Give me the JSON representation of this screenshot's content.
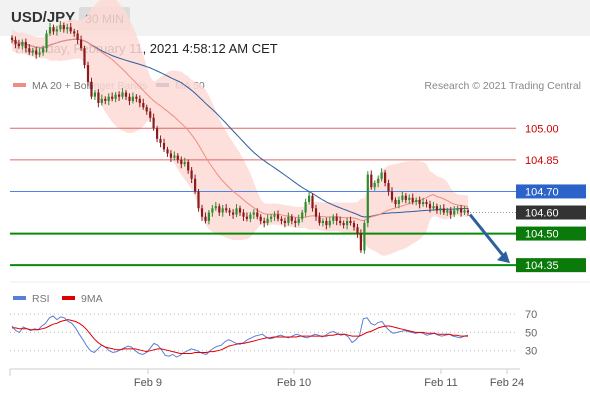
{
  "header": {
    "symbol": "USD/JPY",
    "timeframe": "30 MIN",
    "datetime": "Thursday, February 11, 2021 4:58:12 AM CET"
  },
  "legend": {
    "items": [
      {
        "label": "MA 20 + Bollinger Bands",
        "color": "#f28b82"
      },
      {
        "label": "MA 50",
        "color": "#2c5f9e"
      }
    ],
    "copyright": "Research © 2021 Trading Central"
  },
  "rsi_legend": {
    "items": [
      {
        "label": "RSI",
        "color": "#5b7fd6"
      },
      {
        "label": "9MA",
        "color": "#e00000"
      }
    ]
  },
  "colors": {
    "bullish_candle": "#2e8b2e",
    "bearish_candle": "#8b1a1a",
    "bollinger_fill": "#fdd9d6",
    "ma20": "#f28b82",
    "ma50": "#2c5f9e",
    "resistance": "#e06666",
    "pivot": "#4a86e8",
    "support": "#0a8a0a",
    "current_price_bg": "#333333",
    "arrow": "#2c5f9e"
  },
  "chart_data": [
    {
      "type": "candlestick",
      "title": "USD/JPY 30 MIN",
      "x_tick_labels": [
        "Feb 9",
        "Feb 10",
        "Feb 11",
        "Feb 24"
      ],
      "ylim": [
        104.27,
        105.12
      ],
      "levels": [
        {
          "label": "105.00",
          "value": 105.0,
          "kind": "resistance"
        },
        {
          "label": "104.85",
          "value": 104.85,
          "kind": "resistance"
        },
        {
          "label": "104.70",
          "value": 104.7,
          "kind": "pivot"
        },
        {
          "label": "104.60",
          "value": 104.6,
          "kind": "current"
        },
        {
          "label": "104.50",
          "value": 104.5,
          "kind": "support"
        },
        {
          "label": "104.35",
          "value": 104.35,
          "kind": "support"
        }
      ],
      "forecast_arrow": {
        "from": 104.6,
        "to": 104.35,
        "direction": "down"
      },
      "close_prices": [
        105.42,
        105.4,
        105.39,
        105.41,
        105.38,
        105.36,
        105.37,
        105.35,
        105.36,
        105.38,
        105.45,
        105.48,
        105.46,
        105.47,
        105.49,
        105.47,
        105.48,
        105.46,
        105.45,
        105.42,
        105.38,
        105.3,
        105.22,
        105.15,
        105.17,
        105.12,
        105.14,
        105.13,
        105.15,
        105.14,
        105.16,
        105.15,
        105.17,
        105.15,
        105.13,
        105.15,
        105.14,
        105.12,
        105.1,
        105.08,
        105.05,
        105.0,
        104.95,
        104.93,
        104.9,
        104.88,
        104.86,
        104.87,
        104.85,
        104.83,
        104.84,
        104.8,
        104.76,
        104.7,
        104.62,
        104.58,
        104.56,
        104.6,
        104.62,
        104.63,
        104.6,
        104.62,
        104.61,
        104.6,
        104.59,
        104.62,
        104.6,
        104.58,
        104.57,
        104.59,
        104.6,
        104.58,
        104.56,
        104.55,
        104.57,
        104.58,
        104.59,
        104.57,
        104.56,
        104.55,
        104.58,
        104.56,
        104.55,
        104.57,
        104.6,
        104.65,
        104.68,
        104.62,
        104.58,
        104.55,
        104.56,
        104.54,
        104.56,
        104.58,
        104.56,
        104.55,
        104.54,
        104.56,
        104.55,
        104.53,
        104.5,
        104.42,
        104.55,
        104.78,
        104.72,
        104.74,
        104.76,
        104.79,
        104.74,
        104.7,
        104.66,
        104.64,
        104.66,
        104.68,
        104.66,
        104.67,
        104.65,
        104.66,
        104.64,
        104.65,
        104.64,
        104.62,
        104.63,
        104.61,
        104.62,
        104.6,
        104.61,
        104.59,
        104.61,
        104.62,
        104.6,
        104.61,
        104.6
      ]
    },
    {
      "type": "line",
      "title": "RSI",
      "x_tick_labels": [
        "Feb 9",
        "Feb 10",
        "Feb 11",
        "Feb 24"
      ],
      "y_tick_labels": [
        "70",
        "50",
        "30"
      ],
      "ylim": [
        10,
        80
      ],
      "series": [
        {
          "name": "RSI",
          "values": [
            57,
            52,
            50,
            56,
            54,
            52,
            54,
            53,
            57,
            60,
            66,
            68,
            64,
            67,
            66,
            62,
            60,
            55,
            48,
            42,
            35,
            30,
            28,
            32,
            36,
            34,
            30,
            28,
            29,
            31,
            33,
            35,
            34,
            30,
            27,
            26,
            28,
            33,
            38,
            36,
            31,
            25,
            24,
            26,
            23,
            25,
            28,
            30,
            32,
            31,
            29,
            27,
            26,
            30,
            33,
            35,
            36,
            40,
            42,
            40,
            38,
            37,
            39,
            42,
            44,
            46,
            47,
            48,
            45,
            43,
            44,
            46,
            47,
            45,
            44,
            46,
            48,
            47,
            45,
            44,
            46,
            48,
            47,
            45,
            47,
            50,
            51,
            49,
            47,
            48,
            45,
            39,
            42,
            47,
            65,
            66,
            60,
            58,
            61,
            62,
            56,
            52,
            49,
            50,
            51,
            52,
            51,
            50,
            49,
            50,
            49,
            47,
            48,
            49,
            47,
            46,
            47,
            48,
            46,
            45,
            44,
            46,
            47
          ]
        },
        {
          "name": "9MA",
          "values": [
            55,
            55,
            54,
            54,
            54,
            53,
            53,
            53,
            54,
            55,
            57,
            59,
            60,
            62,
            63,
            64,
            63,
            62,
            60,
            57,
            53,
            48,
            43,
            39,
            36,
            34,
            33,
            32,
            31,
            31,
            32,
            32,
            32,
            32,
            31,
            30,
            29,
            30,
            31,
            32,
            32,
            31,
            30,
            29,
            28,
            27,
            27,
            27,
            27,
            28,
            28,
            28,
            28,
            29,
            29,
            30,
            31,
            33,
            35,
            36,
            37,
            38,
            38,
            39,
            40,
            41,
            42,
            43,
            44,
            44,
            45,
            45,
            45,
            45,
            45,
            45,
            45,
            46,
            46,
            46,
            46,
            46,
            46,
            46,
            46,
            47,
            47,
            48,
            48,
            48,
            47,
            46,
            46,
            46,
            48,
            50,
            51,
            53,
            55,
            56,
            57,
            57,
            56,
            55,
            54,
            53,
            52,
            51,
            50,
            50,
            50,
            49,
            49,
            49,
            48,
            48,
            48,
            48,
            47,
            47,
            46,
            46,
            46
          ]
        }
      ]
    }
  ]
}
